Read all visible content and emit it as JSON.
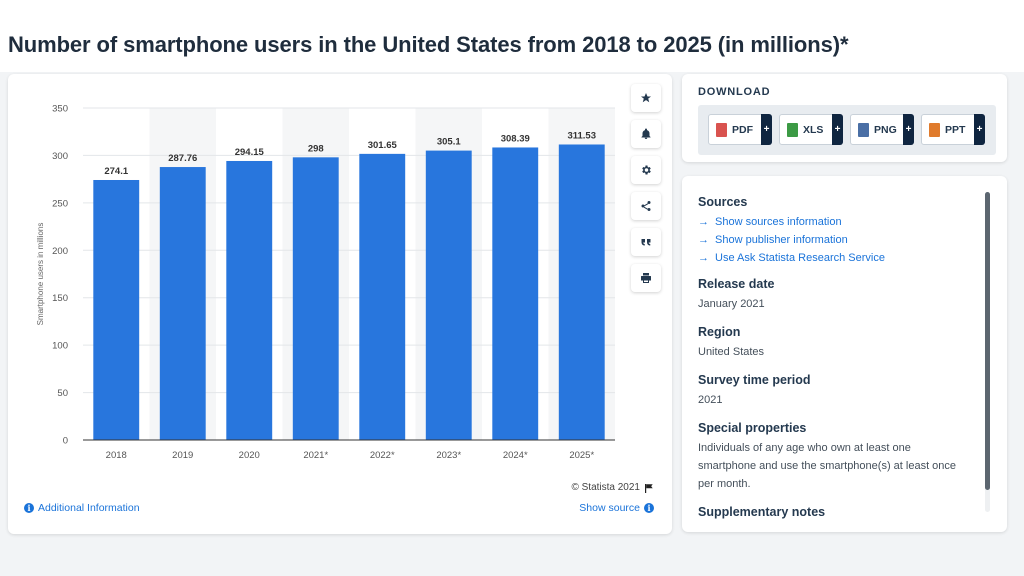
{
  "page": {
    "title": "Number of smartphone users in the United States from 2018 to 2025 (in millions)*"
  },
  "chart_data": {
    "type": "bar",
    "categories": [
      "2018",
      "2019",
      "2020",
      "2021*",
      "2022*",
      "2023*",
      "2024*",
      "2025*"
    ],
    "values": [
      274.1,
      287.76,
      294.15,
      298,
      301.65,
      305.1,
      308.39,
      311.53
    ],
    "value_labels": [
      "274.1",
      "287.76",
      "294.15",
      "298",
      "301.65",
      "305.1",
      "308.39",
      "311.53"
    ],
    "ylabel": "Smartphone users in millions",
    "xlabel": "",
    "ylim": [
      0,
      350
    ],
    "yticks": [
      0,
      50,
      100,
      150,
      200,
      250,
      300,
      350
    ],
    "bar_color": "#2876dd",
    "grid": true
  },
  "chart_footer": {
    "copyright": "© Statista 2021",
    "additional_info": "Additional Information",
    "show_source": "Show source"
  },
  "toolbar": {
    "icons": [
      "star-icon",
      "bell-icon",
      "gear-icon",
      "share-icon",
      "quote-icon",
      "print-icon"
    ]
  },
  "download": {
    "title": "DOWNLOAD",
    "buttons": [
      {
        "label": "PDF",
        "color": "#d9534f"
      },
      {
        "label": "XLS",
        "color": "#3c9a45"
      },
      {
        "label": "PNG",
        "color": "#4a6fa5"
      },
      {
        "label": "PPT",
        "color": "#e07b2c"
      }
    ],
    "plus": "+"
  },
  "meta": {
    "sources_heading": "Sources",
    "source_links": [
      "Show sources information",
      "Show publisher information",
      "Use Ask Statista Research Service"
    ],
    "release_date_heading": "Release date",
    "release_date": "January 2021",
    "region_heading": "Region",
    "region": "United States",
    "survey_heading": "Survey time period",
    "survey": "2021",
    "special_heading": "Special properties",
    "special": "Individuals of any age who own at least one smartphone and use the smartphone(s) at least once per month.",
    "supplementary_heading": "Supplementary notes"
  }
}
